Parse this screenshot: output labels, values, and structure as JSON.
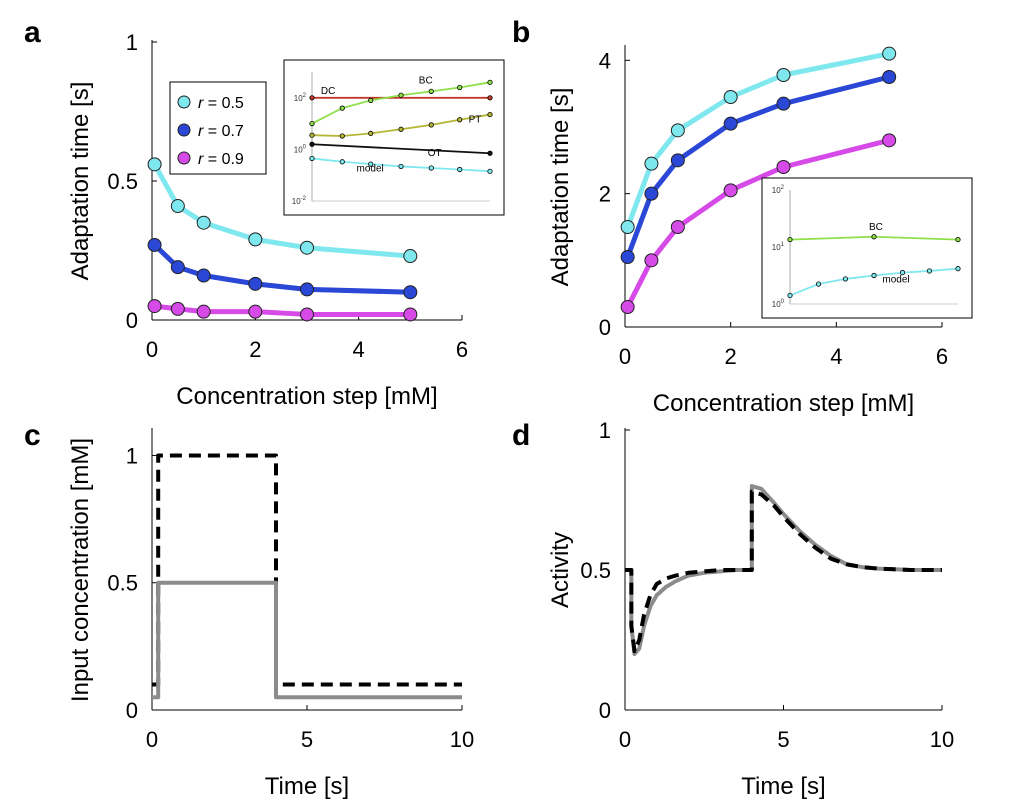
{
  "chart_data": [
    {
      "id": "a",
      "panel_label": "a",
      "type": "line",
      "xlabel": "Concentration step [mM]",
      "ylabel": "Adaptation time [s]",
      "xlim": [
        0,
        6
      ],
      "ylim": [
        0,
        1
      ],
      "xticks": [
        "0",
        "2",
        "4",
        "6"
      ],
      "yticks": [
        "0",
        "0.5",
        "1"
      ],
      "legend": {
        "placement": "top-left",
        "entries": [
          {
            "prefix": "r",
            "value": " = 0.5",
            "color": "#7fe8ef"
          },
          {
            "prefix": "r",
            "value": " = 0.7",
            "color": "#2a47d6"
          },
          {
            "prefix": "r",
            "value": " = 0.9",
            "color": "#d64be8"
          }
        ]
      },
      "series": [
        {
          "name": "r = 0.5",
          "color": "#7fe8ef",
          "x": [
            0.05,
            0.5,
            1,
            2,
            3,
            5
          ],
          "y": [
            0.56,
            0.41,
            0.35,
            0.29,
            0.26,
            0.23
          ]
        },
        {
          "name": "r = 0.7",
          "color": "#2a47d6",
          "x": [
            0.05,
            0.5,
            1,
            2,
            3,
            5
          ],
          "y": [
            0.27,
            0.19,
            0.16,
            0.13,
            0.11,
            0.1
          ]
        },
        {
          "name": "r = 0.9",
          "color": "#d64be8",
          "x": [
            0.05,
            0.5,
            1,
            2,
            3,
            5
          ],
          "y": [
            0.05,
            0.04,
            0.03,
            0.03,
            0.02,
            0.02
          ]
        }
      ],
      "inset": {
        "type": "line",
        "yscale": "log",
        "ylim_exp": [
          -2,
          3
        ],
        "yticks": [
          {
            "base": "10",
            "exp": "2"
          },
          {
            "base": "10",
            "exp": "0"
          },
          {
            "base": "10",
            "exp": "-2"
          }
        ],
        "labels": [
          "DC",
          "BC",
          "PT",
          "OT",
          "model"
        ],
        "series": [
          {
            "name": "DC",
            "color": "#c0392b",
            "marker": false,
            "x": [
              0,
              1
            ],
            "y": [
              2,
              2
            ]
          },
          {
            "name": "BC",
            "color": "#8fe04a",
            "marker": true,
            "x": [
              0,
              0.17,
              0.33,
              0.5,
              0.67,
              0.83,
              1
            ],
            "y": [
              1.0,
              1.6,
              1.9,
              2.1,
              2.25,
              2.4,
              2.6
            ]
          },
          {
            "name": "PT",
            "color": "#b5b535",
            "marker": true,
            "x": [
              0,
              0.17,
              0.33,
              0.5,
              0.67,
              0.83,
              1
            ],
            "y": [
              0.55,
              0.52,
              0.62,
              0.78,
              0.95,
              1.15,
              1.35
            ]
          },
          {
            "name": "OT",
            "color": "#111111",
            "marker": false,
            "x": [
              0,
              1
            ],
            "y": [
              0.2,
              -0.15
            ]
          },
          {
            "name": "model",
            "color": "#7fe8ef",
            "marker": true,
            "x": [
              0,
              0.17,
              0.33,
              0.5,
              0.67,
              0.83,
              1
            ],
            "y": [
              -0.35,
              -0.48,
              -0.57,
              -0.66,
              -0.72,
              -0.78,
              -0.85
            ]
          }
        ]
      }
    },
    {
      "id": "b",
      "panel_label": "b",
      "type": "line",
      "xlabel": "Concentration step [mM]",
      "ylabel": "Adaptation time [s]",
      "xlim": [
        0,
        6
      ],
      "ylim": [
        0,
        4.2
      ],
      "xticks": [
        "0",
        "2",
        "4",
        "6"
      ],
      "yticks": [
        "0",
        "2",
        "4"
      ],
      "series": [
        {
          "name": "r = 0.5",
          "color": "#7fe8ef",
          "x": [
            0.05,
            0.5,
            1,
            2,
            3,
            5
          ],
          "y": [
            1.5,
            2.45,
            2.95,
            3.45,
            3.78,
            4.1
          ]
        },
        {
          "name": "r = 0.7",
          "color": "#2a47d6",
          "x": [
            0.05,
            0.5,
            1,
            2,
            3,
            5
          ],
          "y": [
            1.05,
            2.0,
            2.5,
            3.05,
            3.35,
            3.75
          ]
        },
        {
          "name": "r = 0.9",
          "color": "#d64be8",
          "x": [
            0.05,
            0.5,
            1,
            2,
            3,
            5
          ],
          "y": [
            0.3,
            1.0,
            1.5,
            2.05,
            2.4,
            2.8
          ]
        }
      ],
      "inset": {
        "type": "line",
        "yscale": "log",
        "ylim_exp": [
          0,
          2
        ],
        "yticks": [
          {
            "base": "10",
            "exp": "2"
          },
          {
            "base": "10",
            "exp": "1"
          },
          {
            "base": "10",
            "exp": "0"
          }
        ],
        "labels": [
          "BC",
          "model"
        ],
        "series": [
          {
            "name": "BC",
            "color": "#8fe04a",
            "marker": true,
            "x": [
              0,
              0.5,
              1
            ],
            "y": [
              1.13,
              1.18,
              1.13
            ]
          },
          {
            "name": "model",
            "color": "#7fe8ef",
            "marker": true,
            "x": [
              0,
              0.17,
              0.33,
              0.5,
              0.67,
              0.83,
              1
            ],
            "y": [
              0.15,
              0.35,
              0.44,
              0.5,
              0.55,
              0.58,
              0.62
            ]
          }
        ]
      }
    },
    {
      "id": "c",
      "panel_label": "c",
      "type": "line",
      "xlabel": "Time [s]",
      "ylabel": "Input concentration [mM]",
      "xlim": [
        0,
        10
      ],
      "ylim": [
        0,
        1.1
      ],
      "xticks": [
        "0",
        "5",
        "10"
      ],
      "yticks": [
        "0",
        "0.5",
        "1"
      ],
      "series": [
        {
          "name": "dashed",
          "color": "#000000",
          "dash": true,
          "x": [
            0,
            0.2,
            0.2,
            4,
            4,
            10
          ],
          "y": [
            0.1,
            0.1,
            1,
            1,
            0.1,
            0.1
          ]
        },
        {
          "name": "solid",
          "color": "#8c8c8c",
          "dash": false,
          "x": [
            0,
            0.2,
            0.2,
            4,
            4,
            10
          ],
          "y": [
            0.05,
            0.05,
            0.5,
            0.5,
            0.05,
            0.05
          ]
        }
      ]
    },
    {
      "id": "d",
      "panel_label": "d",
      "type": "line",
      "xlabel": "Time [s]",
      "ylabel": "Activity",
      "xlim": [
        0,
        10
      ],
      "ylim": [
        0,
        1
      ],
      "xticks": [
        "0",
        "5",
        "10"
      ],
      "yticks": [
        "0",
        "0.5",
        "1"
      ],
      "series": [
        {
          "name": "solid",
          "color": "#8c8c8c",
          "dash": false,
          "x": [
            0,
            0.2,
            0.2,
            0.3,
            0.45,
            0.6,
            0.8,
            1.0,
            1.3,
            1.6,
            2,
            2.5,
            3,
            3.5,
            4,
            4,
            4.3,
            4.7,
            5,
            5.5,
            6,
            6.5,
            7,
            7.5,
            8,
            9,
            10
          ],
          "y": [
            0.5,
            0.5,
            0.3,
            0.2,
            0.22,
            0.3,
            0.37,
            0.41,
            0.44,
            0.46,
            0.48,
            0.49,
            0.495,
            0.5,
            0.5,
            0.8,
            0.79,
            0.74,
            0.7,
            0.64,
            0.59,
            0.55,
            0.52,
            0.51,
            0.505,
            0.5,
            0.5
          ]
        },
        {
          "name": "dashed",
          "color": "#000000",
          "dash": true,
          "x": [
            0,
            0.2,
            0.2,
            0.3,
            0.45,
            0.6,
            0.8,
            1.0,
            1.3,
            1.6,
            2,
            2.5,
            3,
            3.5,
            4,
            4,
            4.3,
            4.7,
            5,
            5.5,
            6,
            6.5,
            7,
            7.5,
            8,
            9,
            10
          ],
          "y": [
            0.5,
            0.5,
            0.3,
            0.21,
            0.25,
            0.34,
            0.41,
            0.45,
            0.47,
            0.48,
            0.49,
            0.495,
            0.5,
            0.5,
            0.5,
            0.78,
            0.77,
            0.73,
            0.69,
            0.63,
            0.58,
            0.54,
            0.52,
            0.51,
            0.505,
            0.5,
            0.5
          ]
        }
      ]
    }
  ]
}
